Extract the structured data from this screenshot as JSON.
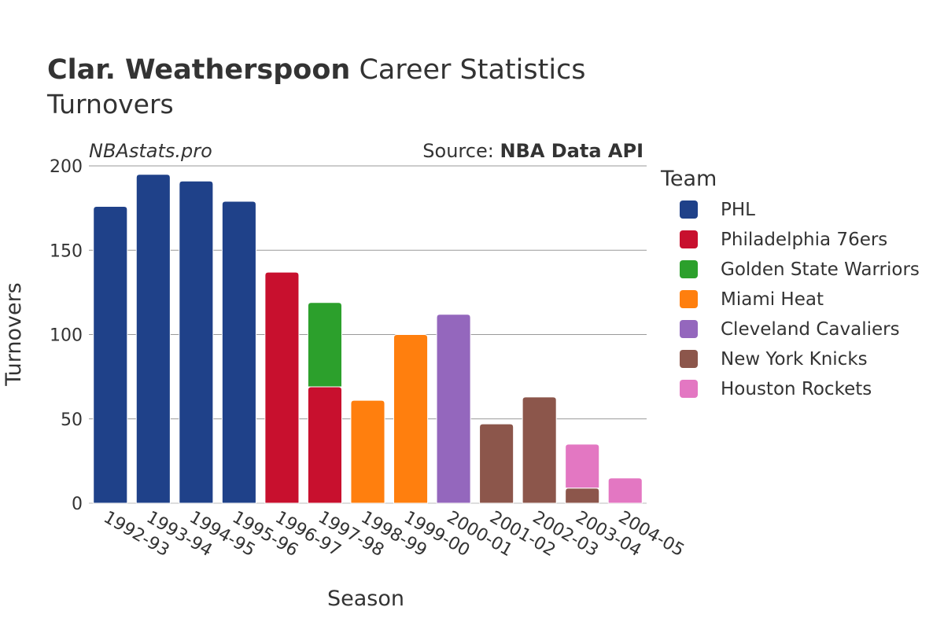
{
  "title_bold": "Clar. Weatherspoon",
  "title_rest": " Career Statistics",
  "subtitle": "Turnovers",
  "watermark": "NBAstats.pro",
  "source_label": "Source: ",
  "source_value": "NBA Data API",
  "legend_title": "Team",
  "chart_data": {
    "type": "bar",
    "stacked": true,
    "xlabel": "Season",
    "ylabel": "Turnovers",
    "ylim": [
      0,
      200
    ],
    "yticks": [
      0,
      50,
      100,
      150,
      200
    ],
    "grid": true,
    "legend_position": "right",
    "categories": [
      "1992-93",
      "1993-94",
      "1994-95",
      "1995-96",
      "1996-97",
      "1997-98",
      "1998-99",
      "1999-00",
      "2000-01",
      "2001-02",
      "2002-03",
      "2003-04",
      "2004-05"
    ],
    "series": [
      {
        "name": "PHL",
        "color": "#1f4189",
        "values": [
          176,
          195,
          191,
          179,
          0,
          0,
          0,
          0,
          0,
          0,
          0,
          0,
          0
        ]
      },
      {
        "name": "Philadelphia 76ers",
        "color": "#c8102e",
        "values": [
          0,
          0,
          0,
          0,
          137,
          69,
          0,
          0,
          0,
          0,
          0,
          0,
          0
        ]
      },
      {
        "name": "Golden State Warriors",
        "color": "#2ca02c",
        "values": [
          0,
          0,
          0,
          0,
          0,
          50,
          0,
          0,
          0,
          0,
          0,
          0,
          0
        ]
      },
      {
        "name": "Miami Heat",
        "color": "#ff7f0e",
        "values": [
          0,
          0,
          0,
          0,
          0,
          0,
          61,
          100,
          0,
          0,
          0,
          0,
          0
        ]
      },
      {
        "name": "Cleveland Cavaliers",
        "color": "#9467bd",
        "values": [
          0,
          0,
          0,
          0,
          0,
          0,
          0,
          0,
          112,
          0,
          0,
          0,
          0
        ]
      },
      {
        "name": "New York Knicks",
        "color": "#8c564b",
        "values": [
          0,
          0,
          0,
          0,
          0,
          0,
          0,
          0,
          0,
          47,
          63,
          9,
          0
        ]
      },
      {
        "name": "Houston Rockets",
        "color": "#e377c2",
        "values": [
          0,
          0,
          0,
          0,
          0,
          0,
          0,
          0,
          0,
          0,
          0,
          26,
          15
        ]
      }
    ]
  }
}
